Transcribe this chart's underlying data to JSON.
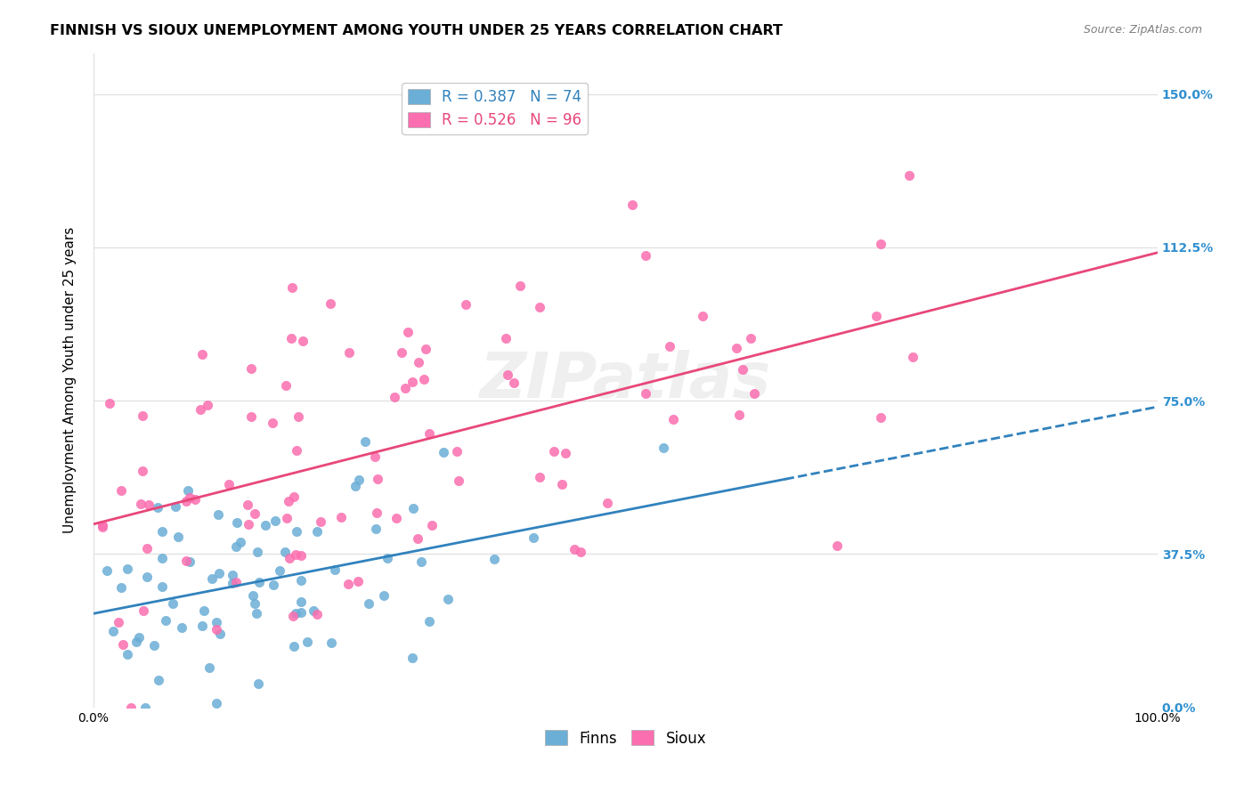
{
  "title": "FINNISH VS SIOUX UNEMPLOYMENT AMONG YOUTH UNDER 25 YEARS CORRELATION CHART",
  "source": "Source: ZipAtlas.com",
  "ylabel": "Unemployment Among Youth under 25 years",
  "xlabel": "",
  "xlim": [
    0.0,
    1.0
  ],
  "ylim": [
    0.0,
    1.6
  ],
  "xtick_labels": [
    "0.0%",
    "100.0%"
  ],
  "ytick_positions": [
    0.0,
    0.375,
    0.75,
    1.125,
    1.5
  ],
  "ytick_labels": [
    "0.0%",
    "37.5%",
    "75.0%",
    "112.5%",
    "150.0%"
  ],
  "finns_color": "#6baed6",
  "sioux_color": "#fb6eb0",
  "finns_R": 0.387,
  "finns_N": 74,
  "sioux_R": 0.526,
  "sioux_N": 96,
  "trend_finns_color": "#3182bd",
  "trend_sioux_color": "#e8477a",
  "watermark": "ZIPatlas",
  "background_color": "#ffffff",
  "grid_color": "#dddddd",
  "finns_seed": 42,
  "sioux_seed": 99
}
